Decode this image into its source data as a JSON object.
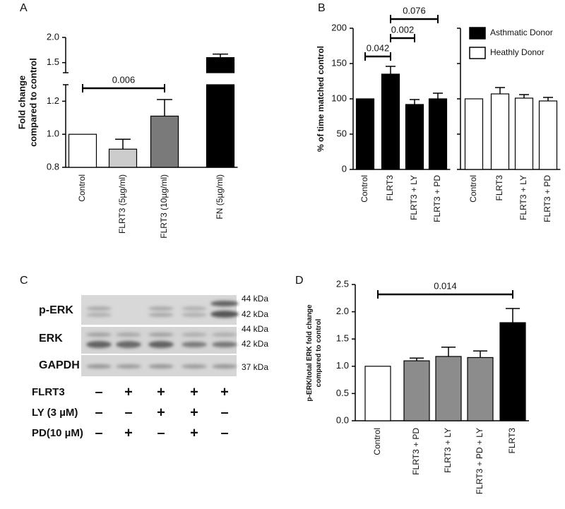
{
  "chart_data": [
    {
      "type": "bar",
      "panel": "A",
      "ylabel": [
        "Fold change",
        "compared to control"
      ],
      "categories": [
        "Control",
        "FLRT3 (5µg/ml)",
        "FLRT3 (10µg/ml)",
        "FN (5µg/ml)"
      ],
      "values": [
        1.0,
        0.91,
        1.11,
        1.6
      ],
      "errors": [
        null,
        0.06,
        0.1,
        0.07
      ],
      "colors": [
        "#ffffff",
        "#cccccc",
        "#7a7a7a",
        "#000000"
      ],
      "ylim": [
        0.8,
        2.0
      ],
      "ybreak": 1.3,
      "yticks": [
        0.8,
        {
          "value": 1.0,
          "label": "1.0"
        },
        1.2,
        1.5,
        {
          "value": 2.0,
          "label": "2.0"
        }
      ],
      "annotations": [
        {
          "text": "0.006",
          "between": [
            "Control",
            "FLRT3 (10µg/ml)"
          ]
        }
      ]
    },
    {
      "type": "bar",
      "panel": "B",
      "ylabel": [
        "% of time matched control"
      ],
      "categories": [
        "Control",
        "FLRT3",
        "FLRT3 + LY",
        "FLRT3 + PD"
      ],
      "series": [
        {
          "name": "Asthmatic Donor",
          "color": "#000000",
          "values": [
            100,
            135,
            92,
            100
          ],
          "errors": [
            null,
            11,
            7,
            8
          ]
        },
        {
          "name": "Heathly Donor",
          "color": "#ffffff",
          "values": [
            100,
            107,
            101,
            97
          ],
          "errors": [
            null,
            9,
            5,
            5
          ]
        }
      ],
      "ylim": [
        0,
        200
      ],
      "yticks": [
        0,
        50,
        100,
        150,
        200
      ],
      "legend": "top-right",
      "annotations": [
        {
          "text": "0.042",
          "between": [
            "Control",
            "FLRT3"
          ]
        },
        {
          "text": "0.002",
          "between": [
            "FLRT3",
            "FLRT3 + LY"
          ]
        },
        {
          "text": "0.076",
          "between": [
            "FLRT3",
            "FLRT3 + PD"
          ]
        }
      ]
    },
    {
      "type": "bar",
      "panel": "D",
      "ylabel": [
        "p-ERK/total ERK fold change",
        "compared to control"
      ],
      "categories": [
        "Control",
        "FLRT3 + PD",
        "FLRT3 + LY",
        "FLRT3 + PD + LY",
        "FLRT3"
      ],
      "values": [
        1.0,
        1.1,
        1.18,
        1.16,
        1.8
      ],
      "errors": [
        null,
        0.05,
        0.17,
        0.12,
        0.26
      ],
      "colors": [
        "#ffffff",
        "#8c8c8c",
        "#8c8c8c",
        "#8c8c8c",
        "#000000"
      ],
      "ylim": [
        0,
        2.5
      ],
      "yticks": [
        {
          "value": 0,
          "label": "0.0"
        },
        0.5,
        {
          "value": 1,
          "label": "1.0"
        },
        1.5,
        {
          "value": 2,
          "label": "2.0"
        },
        2.5
      ],
      "annotations": [
        {
          "text": "0.014",
          "between": [
            "Control",
            "FLRT3"
          ]
        }
      ]
    }
  ],
  "blot": {
    "panel": "C",
    "rows": [
      "p-ERK",
      "ERK",
      "GAPDH"
    ],
    "sizes": [
      "44 kDa",
      "42 kDa",
      "44 kDa",
      "42 kDa",
      "37 kDa"
    ],
    "treatments": [
      {
        "name": "FLRT3",
        "signs": [
          "–",
          "+",
          "+",
          "+",
          "+"
        ]
      },
      {
        "name": "LY (3 µM)",
        "signs": [
          "–",
          "–",
          "+",
          "+",
          "–"
        ]
      },
      {
        "name": "PD(10 µM)",
        "signs": [
          "–",
          "+",
          "–",
          "+",
          "–"
        ]
      }
    ]
  }
}
